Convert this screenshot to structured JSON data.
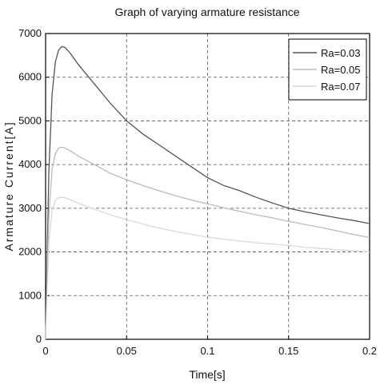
{
  "chart_data": {
    "type": "line",
    "title": "Graph of varying armature resistance",
    "xlabel": "Time[s]",
    "ylabel": "Armature Current[A]",
    "xlim": [
      0,
      0.2
    ],
    "ylim": [
      0,
      7000
    ],
    "xticks": [
      0,
      0.05,
      0.1,
      0.15,
      0.2
    ],
    "xtick_labels": [
      "0",
      "0.05",
      "0.1",
      "0.15",
      "0.2"
    ],
    "yticks": [
      0,
      1000,
      2000,
      3000,
      4000,
      5000,
      6000,
      7000
    ],
    "ytick_labels": [
      "0",
      "1000",
      "2000",
      "3000",
      "4000",
      "5000",
      "6000",
      "7000"
    ],
    "grid": true,
    "legend_position": "top-right",
    "series": [
      {
        "name": "Ra=0.03",
        "color": "#555555",
        "x": [
          0,
          0.002,
          0.004,
          0.006,
          0.008,
          0.01,
          0.012,
          0.015,
          0.02,
          0.03,
          0.04,
          0.05,
          0.06,
          0.07,
          0.08,
          0.09,
          0.1,
          0.11,
          0.12,
          0.13,
          0.14,
          0.15,
          0.16,
          0.17,
          0.18,
          0.19,
          0.2
        ],
        "y": [
          0,
          3800,
          5600,
          6350,
          6620,
          6700,
          6680,
          6560,
          6300,
          5850,
          5400,
          5000,
          4700,
          4450,
          4200,
          3950,
          3700,
          3520,
          3400,
          3250,
          3120,
          3000,
          2920,
          2850,
          2780,
          2720,
          2650
        ]
      },
      {
        "name": "Ra=0.05",
        "color": "#bbbbbb",
        "x": [
          0,
          0.002,
          0.004,
          0.006,
          0.008,
          0.01,
          0.012,
          0.015,
          0.02,
          0.03,
          0.04,
          0.05,
          0.06,
          0.07,
          0.08,
          0.09,
          0.1,
          0.11,
          0.12,
          0.13,
          0.14,
          0.15,
          0.16,
          0.17,
          0.18,
          0.19,
          0.2
        ],
        "y": [
          0,
          2800,
          3900,
          4250,
          4380,
          4400,
          4380,
          4320,
          4200,
          4000,
          3800,
          3650,
          3520,
          3400,
          3290,
          3190,
          3100,
          3010,
          2930,
          2850,
          2780,
          2700,
          2630,
          2560,
          2480,
          2400,
          2330
        ]
      },
      {
        "name": "Ra=0.07",
        "color": "#d8d8d8",
        "x": [
          0,
          0.002,
          0.004,
          0.006,
          0.008,
          0.01,
          0.012,
          0.015,
          0.02,
          0.03,
          0.04,
          0.05,
          0.06,
          0.07,
          0.08,
          0.09,
          0.1,
          0.11,
          0.12,
          0.13,
          0.14,
          0.15,
          0.16,
          0.17,
          0.18,
          0.19,
          0.2
        ],
        "y": [
          0,
          2200,
          2950,
          3180,
          3240,
          3250,
          3240,
          3200,
          3120,
          2980,
          2850,
          2740,
          2640,
          2550,
          2470,
          2400,
          2340,
          2290,
          2250,
          2210,
          2180,
          2150,
          2110,
          2080,
          2050,
          2030,
          2000
        ]
      }
    ]
  }
}
